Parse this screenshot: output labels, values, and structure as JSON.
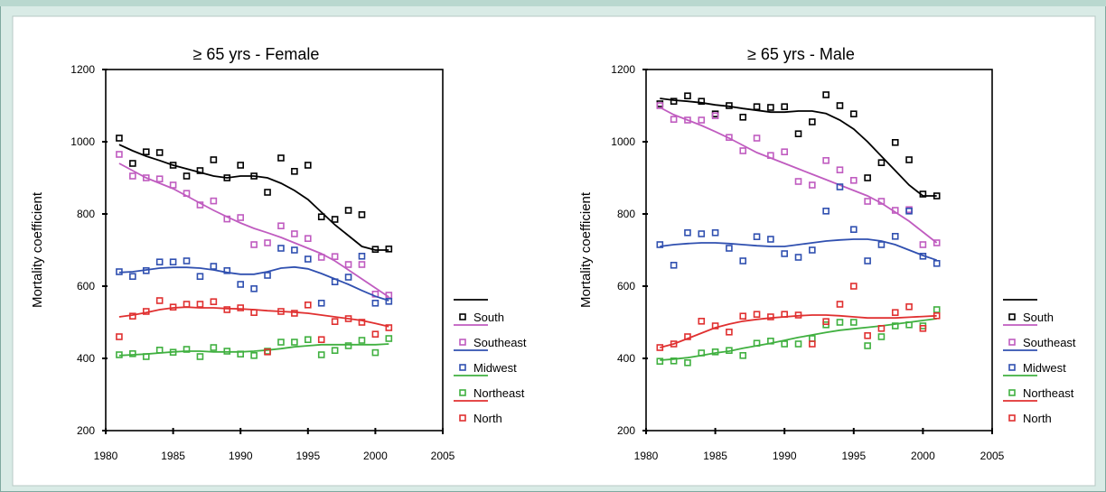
{
  "chart_data": [
    {
      "type": "scatter",
      "title": "≥  65 yrs - Female",
      "ylabel": "Mortality coefficient",
      "xlabel": "",
      "xlim": [
        1980,
        2005
      ],
      "ylim": [
        200,
        1200
      ],
      "xticks": [
        1980,
        1985,
        1990,
        1995,
        2000,
        2005
      ],
      "yticks": [
        200,
        400,
        600,
        800,
        1000,
        1200
      ],
      "legend_position": "right",
      "x": [
        1981,
        1982,
        1983,
        1984,
        1985,
        1986,
        1987,
        1988,
        1989,
        1990,
        1991,
        1992,
        1993,
        1994,
        1995,
        1996,
        1997,
        1998,
        1999,
        2000,
        2001
      ],
      "series": [
        {
          "name": "South",
          "color": "#000000",
          "points": [
            1010,
            940,
            972,
            970,
            935,
            905,
            920,
            950,
            900,
            935,
            905,
            860,
            955,
            918,
            935,
            792,
            785,
            810,
            798,
            702,
            703
          ],
          "trend": [
            992,
            975,
            960,
            948,
            935,
            925,
            915,
            905,
            900,
            905,
            905,
            900,
            885,
            865,
            840,
            805,
            770,
            740,
            710,
            700,
            700
          ]
        },
        {
          "name": "Southeast",
          "color": "#c05cc0",
          "points": [
            965,
            905,
            900,
            897,
            880,
            857,
            825,
            836,
            786,
            790,
            715,
            720,
            767,
            745,
            732,
            680,
            682,
            660,
            660,
            578,
            575
          ],
          "trend": [
            940,
            920,
            900,
            885,
            870,
            850,
            830,
            810,
            792,
            775,
            760,
            748,
            735,
            720,
            705,
            690,
            670,
            645,
            620,
            595,
            570
          ]
        },
        {
          "name": "Midwest",
          "color": "#3050b0",
          "points": [
            640,
            627,
            643,
            667,
            667,
            670,
            627,
            655,
            643,
            605,
            593,
            630,
            705,
            700,
            675,
            553,
            612,
            625,
            683,
            553,
            558
          ],
          "trend": [
            638,
            640,
            645,
            650,
            652,
            652,
            650,
            645,
            638,
            633,
            633,
            640,
            650,
            653,
            648,
            635,
            620,
            605,
            588,
            572,
            560
          ]
        },
        {
          "name": "Northeast",
          "color": "#40b040",
          "points": [
            410,
            413,
            405,
            423,
            417,
            425,
            405,
            430,
            420,
            412,
            408,
            420,
            445,
            445,
            452,
            410,
            422,
            435,
            450,
            416,
            455
          ],
          "trend": [
            408,
            410,
            412,
            415,
            418,
            420,
            420,
            418,
            418,
            418,
            420,
            423,
            427,
            432,
            435,
            438,
            438,
            438,
            438,
            438,
            440
          ]
        },
        {
          "name": "North",
          "color": "#e03030",
          "points": [
            460,
            517,
            530,
            560,
            542,
            550,
            550,
            557,
            535,
            540,
            527,
            418,
            530,
            525,
            548,
            452,
            502,
            510,
            500,
            467,
            485
          ],
          "trend": [
            515,
            520,
            527,
            535,
            540,
            542,
            540,
            540,
            538,
            537,
            535,
            532,
            530,
            528,
            525,
            520,
            515,
            510,
            505,
            497,
            488
          ]
        }
      ]
    },
    {
      "type": "scatter",
      "title": "≥  65 yrs - Male",
      "ylabel": "Mortality coefficient",
      "xlabel": "",
      "xlim": [
        1980,
        2005
      ],
      "ylim": [
        200,
        1200
      ],
      "xticks": [
        1980,
        1985,
        1990,
        1995,
        2000,
        2005
      ],
      "yticks": [
        200,
        400,
        600,
        800,
        1000,
        1200
      ],
      "legend_position": "right",
      "x": [
        1981,
        1982,
        1983,
        1984,
        1985,
        1986,
        1987,
        1988,
        1989,
        1990,
        1991,
        1992,
        1993,
        1994,
        1995,
        1996,
        1997,
        1998,
        1999,
        2000,
        2001
      ],
      "series": [
        {
          "name": "South",
          "color": "#000000",
          "points": [
            1105,
            1112,
            1127,
            1112,
            1077,
            1100,
            1068,
            1097,
            1095,
            1097,
            1022,
            1055,
            1130,
            1100,
            1077,
            900,
            942,
            998,
            950,
            855,
            850
          ],
          "trend": [
            1120,
            1115,
            1112,
            1108,
            1102,
            1098,
            1092,
            1087,
            1082,
            1082,
            1085,
            1085,
            1078,
            1060,
            1035,
            1000,
            960,
            920,
            880,
            850,
            850
          ]
        },
        {
          "name": "Southeast",
          "color": "#c05cc0",
          "points": [
            1100,
            1062,
            1060,
            1060,
            1072,
            1012,
            975,
            1010,
            962,
            972,
            890,
            880,
            948,
            922,
            893,
            835,
            835,
            810,
            812,
            715,
            720
          ],
          "trend": [
            1095,
            1075,
            1060,
            1045,
            1028,
            1010,
            990,
            970,
            955,
            940,
            925,
            910,
            895,
            880,
            865,
            850,
            830,
            805,
            780,
            750,
            720
          ]
        },
        {
          "name": "Midwest",
          "color": "#3050b0",
          "points": [
            715,
            658,
            748,
            745,
            748,
            705,
            670,
            737,
            730,
            690,
            680,
            700,
            808,
            875,
            757,
            670,
            715,
            738,
            808,
            683,
            663
          ],
          "trend": [
            710,
            715,
            718,
            720,
            720,
            718,
            715,
            712,
            710,
            710,
            715,
            720,
            725,
            728,
            730,
            730,
            725,
            715,
            700,
            685,
            672
          ]
        },
        {
          "name": "Northeast",
          "color": "#40b040",
          "points": [
            392,
            393,
            388,
            415,
            418,
            422,
            408,
            442,
            448,
            440,
            440,
            455,
            493,
            500,
            500,
            435,
            460,
            490,
            493,
            490,
            535
          ],
          "trend": [
            395,
            398,
            402,
            408,
            415,
            420,
            428,
            435,
            442,
            450,
            458,
            465,
            472,
            478,
            482,
            486,
            490,
            495,
            500,
            505,
            510
          ]
        },
        {
          "name": "North",
          "color": "#e03030",
          "points": [
            430,
            440,
            460,
            503,
            490,
            473,
            517,
            522,
            515,
            522,
            520,
            440,
            502,
            550,
            600,
            463,
            483,
            527,
            543,
            483,
            518
          ],
          "trend": [
            430,
            440,
            455,
            470,
            485,
            495,
            503,
            508,
            512,
            515,
            518,
            520,
            520,
            518,
            515,
            512,
            512,
            512,
            514,
            516,
            518
          ]
        }
      ]
    }
  ]
}
